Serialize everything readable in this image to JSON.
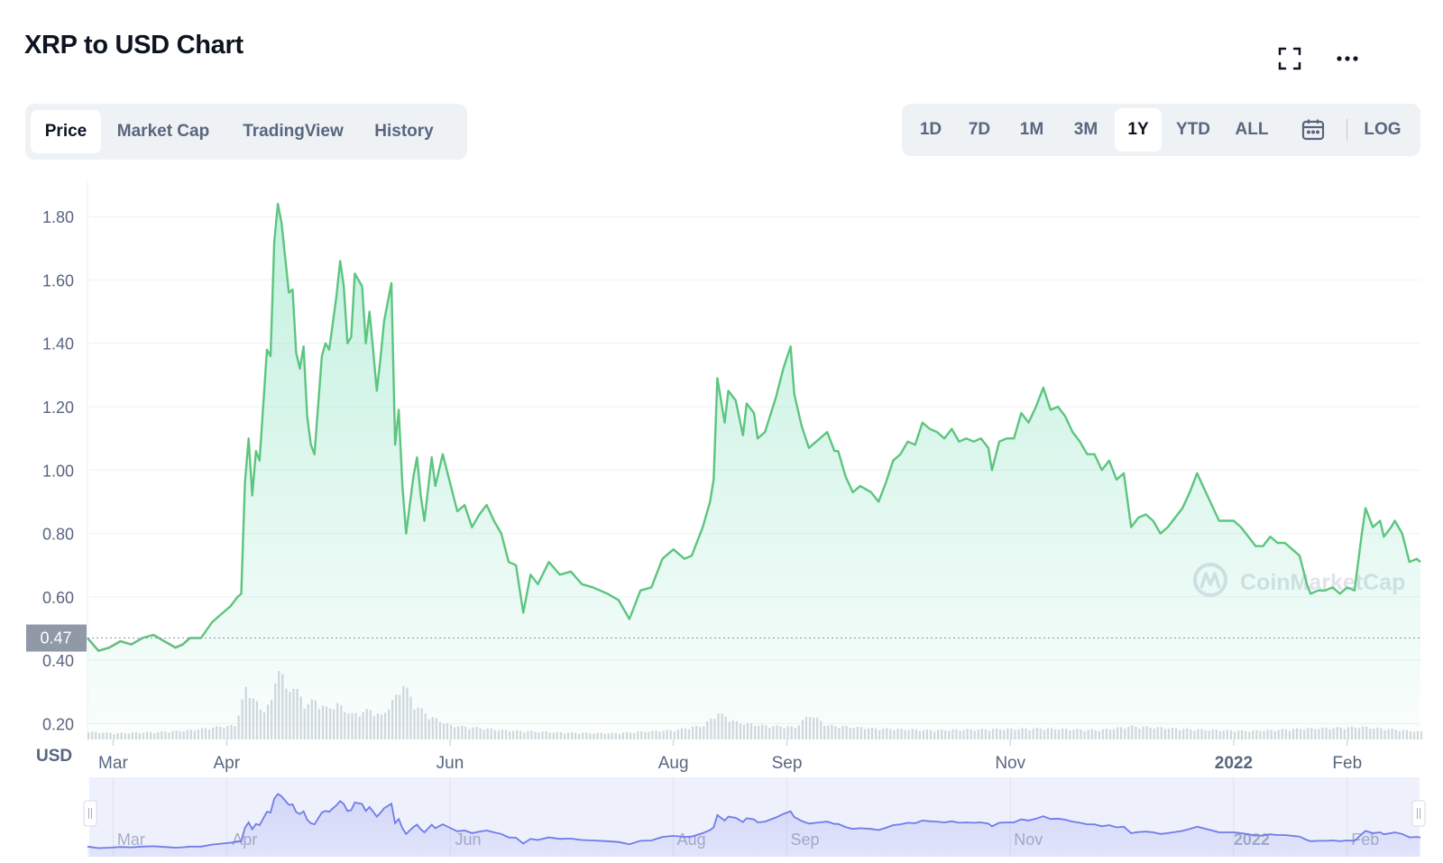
{
  "header": {
    "title": "XRP to USD Chart",
    "fullscreen_icon": "fullscreen-icon",
    "more_icon": "more-dots-icon"
  },
  "tabs": [
    {
      "label": "Price",
      "active": true
    },
    {
      "label": "Market Cap",
      "active": false
    },
    {
      "label": "TradingView",
      "active": false
    },
    {
      "label": "History",
      "active": false
    }
  ],
  "ranges": [
    {
      "label": "1D",
      "active": false
    },
    {
      "label": "7D",
      "active": false
    },
    {
      "label": "1M",
      "active": false
    },
    {
      "label": "3M",
      "active": false
    },
    {
      "label": "1Y",
      "active": true
    },
    {
      "label": "YTD",
      "active": false
    },
    {
      "label": "ALL",
      "active": false
    }
  ],
  "calendar_icon": "calendar-icon",
  "log_label": "LOG",
  "watermark": "CoinMarketCap",
  "colors": {
    "up": "#16c784",
    "line_up": "#5cc57f",
    "line_down": "#ea3943",
    "navigator": "#6f7ce8"
  },
  "chart_data": {
    "type": "area",
    "title": "XRP to USD Chart",
    "y_unit_label": "USD",
    "y_ticks": [
      0.2,
      0.4,
      0.6,
      0.8,
      1.0,
      1.2,
      1.4,
      1.6,
      1.8
    ],
    "y_tick_labels": [
      "0.20",
      "0.40",
      "0.60",
      "0.80",
      "1.00",
      "1.20",
      "1.40",
      "1.60",
      "1.80"
    ],
    "ylim": [
      0.15,
      1.92
    ],
    "x_tick_labels": [
      "Mar",
      "Apr",
      "Jun",
      "Aug",
      "Sep",
      "Nov",
      "2022",
      "Feb"
    ],
    "x_tick_dates": [
      "2021-03-01",
      "2021-04-01",
      "2021-06-01",
      "2021-08-01",
      "2021-09-01",
      "2021-11-01",
      "2022-01-01",
      "2022-02-01"
    ],
    "x_tick_bold": [
      false,
      false,
      false,
      false,
      false,
      false,
      true,
      false
    ],
    "xlim": [
      "2021-02-22",
      "2022-02-21"
    ],
    "reference_price": 0.47,
    "reference_label": "0.47",
    "series": [
      {
        "values": [
          [
            "2021-02-22",
            0.47
          ],
          [
            "2021-02-25",
            0.43
          ],
          [
            "2021-02-28",
            0.44
          ],
          [
            "2021-03-03",
            0.46
          ],
          [
            "2021-03-06",
            0.45
          ],
          [
            "2021-03-09",
            0.47
          ],
          [
            "2021-03-12",
            0.48
          ],
          [
            "2021-03-15",
            0.46
          ],
          [
            "2021-03-18",
            0.44
          ],
          [
            "2021-03-20",
            0.45
          ],
          [
            "2021-03-22",
            0.47
          ],
          [
            "2021-03-25",
            0.47
          ],
          [
            "2021-03-28",
            0.52
          ],
          [
            "2021-03-31",
            0.55
          ],
          [
            "2021-04-02",
            0.57
          ],
          [
            "2021-04-04",
            0.6
          ],
          [
            "2021-04-05",
            0.61
          ],
          [
            "2021-04-06",
            0.96
          ],
          [
            "2021-04-07",
            1.1
          ],
          [
            "2021-04-08",
            0.92
          ],
          [
            "2021-04-09",
            1.06
          ],
          [
            "2021-04-10",
            1.03
          ],
          [
            "2021-04-12",
            1.38
          ],
          [
            "2021-04-13",
            1.36
          ],
          [
            "2021-04-14",
            1.72
          ],
          [
            "2021-04-15",
            1.84
          ],
          [
            "2021-04-16",
            1.78
          ],
          [
            "2021-04-18",
            1.56
          ],
          [
            "2021-04-19",
            1.57
          ],
          [
            "2021-04-20",
            1.37
          ],
          [
            "2021-04-21",
            1.32
          ],
          [
            "2021-04-22",
            1.39
          ],
          [
            "2021-04-23",
            1.17
          ],
          [
            "2021-04-24",
            1.08
          ],
          [
            "2021-04-25",
            1.05
          ],
          [
            "2021-04-27",
            1.36
          ],
          [
            "2021-04-28",
            1.4
          ],
          [
            "2021-04-29",
            1.38
          ],
          [
            "2021-05-01",
            1.55
          ],
          [
            "2021-05-02",
            1.66
          ],
          [
            "2021-05-03",
            1.58
          ],
          [
            "2021-05-04",
            1.4
          ],
          [
            "2021-05-05",
            1.42
          ],
          [
            "2021-05-06",
            1.62
          ],
          [
            "2021-05-08",
            1.58
          ],
          [
            "2021-05-09",
            1.4
          ],
          [
            "2021-05-10",
            1.5
          ],
          [
            "2021-05-11",
            1.38
          ],
          [
            "2021-05-12",
            1.25
          ],
          [
            "2021-05-13",
            1.35
          ],
          [
            "2021-05-14",
            1.47
          ],
          [
            "2021-05-16",
            1.59
          ],
          [
            "2021-05-17",
            1.08
          ],
          [
            "2021-05-18",
            1.19
          ],
          [
            "2021-05-19",
            0.95
          ],
          [
            "2021-05-20",
            0.8
          ],
          [
            "2021-05-22",
            0.98
          ],
          [
            "2021-05-23",
            1.04
          ],
          [
            "2021-05-24",
            0.92
          ],
          [
            "2021-05-25",
            0.84
          ],
          [
            "2021-05-27",
            1.04
          ],
          [
            "2021-05-28",
            0.95
          ],
          [
            "2021-05-30",
            1.05
          ],
          [
            "2021-06-01",
            0.96
          ],
          [
            "2021-06-03",
            0.87
          ],
          [
            "2021-06-05",
            0.89
          ],
          [
            "2021-06-07",
            0.82
          ],
          [
            "2021-06-09",
            0.86
          ],
          [
            "2021-06-11",
            0.89
          ],
          [
            "2021-06-13",
            0.84
          ],
          [
            "2021-06-15",
            0.8
          ],
          [
            "2021-06-17",
            0.71
          ],
          [
            "2021-06-19",
            0.7
          ],
          [
            "2021-06-21",
            0.55
          ],
          [
            "2021-06-23",
            0.67
          ],
          [
            "2021-06-25",
            0.64
          ],
          [
            "2021-06-28",
            0.71
          ],
          [
            "2021-07-01",
            0.67
          ],
          [
            "2021-07-04",
            0.68
          ],
          [
            "2021-07-07",
            0.64
          ],
          [
            "2021-07-10",
            0.63
          ],
          [
            "2021-07-14",
            0.61
          ],
          [
            "2021-07-17",
            0.59
          ],
          [
            "2021-07-20",
            0.53
          ],
          [
            "2021-07-23",
            0.62
          ],
          [
            "2021-07-26",
            0.63
          ],
          [
            "2021-07-29",
            0.72
          ],
          [
            "2021-08-01",
            0.75
          ],
          [
            "2021-08-04",
            0.72
          ],
          [
            "2021-08-06",
            0.73
          ],
          [
            "2021-08-09",
            0.82
          ],
          [
            "2021-08-11",
            0.9
          ],
          [
            "2021-08-12",
            0.97
          ],
          [
            "2021-08-13",
            1.29
          ],
          [
            "2021-08-15",
            1.15
          ],
          [
            "2021-08-16",
            1.25
          ],
          [
            "2021-08-18",
            1.22
          ],
          [
            "2021-08-20",
            1.11
          ],
          [
            "2021-08-21",
            1.21
          ],
          [
            "2021-08-23",
            1.18
          ],
          [
            "2021-08-24",
            1.1
          ],
          [
            "2021-08-26",
            1.12
          ],
          [
            "2021-08-29",
            1.23
          ],
          [
            "2021-08-31",
            1.32
          ],
          [
            "2021-09-02",
            1.39
          ],
          [
            "2021-09-03",
            1.24
          ],
          [
            "2021-09-04",
            1.19
          ],
          [
            "2021-09-05",
            1.14
          ],
          [
            "2021-09-07",
            1.07
          ],
          [
            "2021-09-09",
            1.09
          ],
          [
            "2021-09-12",
            1.12
          ],
          [
            "2021-09-14",
            1.06
          ],
          [
            "2021-09-15",
            1.06
          ],
          [
            "2021-09-17",
            0.98
          ],
          [
            "2021-09-19",
            0.93
          ],
          [
            "2021-09-21",
            0.95
          ],
          [
            "2021-09-24",
            0.93
          ],
          [
            "2021-09-26",
            0.9
          ],
          [
            "2021-09-28",
            0.96
          ],
          [
            "2021-09-30",
            1.03
          ],
          [
            "2021-10-02",
            1.05
          ],
          [
            "2021-10-04",
            1.09
          ],
          [
            "2021-10-06",
            1.08
          ],
          [
            "2021-10-08",
            1.15
          ],
          [
            "2021-10-10",
            1.13
          ],
          [
            "2021-10-12",
            1.12
          ],
          [
            "2021-10-14",
            1.1
          ],
          [
            "2021-10-16",
            1.13
          ],
          [
            "2021-10-18",
            1.09
          ],
          [
            "2021-10-20",
            1.1
          ],
          [
            "2021-10-22",
            1.09
          ],
          [
            "2021-10-24",
            1.1
          ],
          [
            "2021-10-26",
            1.07
          ],
          [
            "2021-10-27",
            1.0
          ],
          [
            "2021-10-29",
            1.09
          ],
          [
            "2021-10-31",
            1.1
          ],
          [
            "2021-11-02",
            1.1
          ],
          [
            "2021-11-04",
            1.18
          ],
          [
            "2021-11-06",
            1.15
          ],
          [
            "2021-11-08",
            1.2
          ],
          [
            "2021-11-10",
            1.26
          ],
          [
            "2021-11-12",
            1.19
          ],
          [
            "2021-11-14",
            1.2
          ],
          [
            "2021-11-16",
            1.17
          ],
          [
            "2021-11-18",
            1.12
          ],
          [
            "2021-11-20",
            1.09
          ],
          [
            "2021-11-22",
            1.05
          ],
          [
            "2021-11-24",
            1.05
          ],
          [
            "2021-11-26",
            1.0
          ],
          [
            "2021-11-28",
            1.03
          ],
          [
            "2021-11-30",
            0.97
          ],
          [
            "2021-12-02",
            0.99
          ],
          [
            "2021-12-04",
            0.82
          ],
          [
            "2021-12-06",
            0.85
          ],
          [
            "2021-12-08",
            0.86
          ],
          [
            "2021-12-10",
            0.84
          ],
          [
            "2021-12-12",
            0.8
          ],
          [
            "2021-12-14",
            0.82
          ],
          [
            "2021-12-16",
            0.85
          ],
          [
            "2021-12-18",
            0.88
          ],
          [
            "2021-12-20",
            0.93
          ],
          [
            "2021-12-22",
            0.99
          ],
          [
            "2021-12-24",
            0.94
          ],
          [
            "2021-12-26",
            0.89
          ],
          [
            "2021-12-28",
            0.84
          ],
          [
            "2021-12-30",
            0.84
          ],
          [
            "2022-01-01",
            0.84
          ],
          [
            "2022-01-03",
            0.82
          ],
          [
            "2022-01-05",
            0.79
          ],
          [
            "2022-01-07",
            0.76
          ],
          [
            "2022-01-09",
            0.76
          ],
          [
            "2022-01-11",
            0.79
          ],
          [
            "2022-01-13",
            0.77
          ],
          [
            "2022-01-15",
            0.77
          ],
          [
            "2022-01-17",
            0.75
          ],
          [
            "2022-01-19",
            0.73
          ],
          [
            "2022-01-21",
            0.64
          ],
          [
            "2022-01-22",
            0.61
          ],
          [
            "2022-01-24",
            0.62
          ],
          [
            "2022-01-26",
            0.62
          ],
          [
            "2022-01-28",
            0.63
          ],
          [
            "2022-01-30",
            0.61
          ],
          [
            "2022-02-01",
            0.63
          ],
          [
            "2022-02-03",
            0.62
          ],
          [
            "2022-02-05",
            0.8
          ],
          [
            "2022-02-06",
            0.88
          ],
          [
            "2022-02-08",
            0.82
          ],
          [
            "2022-02-10",
            0.84
          ],
          [
            "2022-02-11",
            0.79
          ],
          [
            "2022-02-13",
            0.82
          ],
          [
            "2022-02-14",
            0.84
          ],
          [
            "2022-02-16",
            0.8
          ],
          [
            "2022-02-18",
            0.71
          ],
          [
            "2022-02-20",
            0.72
          ],
          [
            "2022-02-21",
            0.71
          ]
        ]
      }
    ],
    "volume": [
      [
        "2021-02-22",
        0.1
      ],
      [
        "2021-03-01",
        0.08
      ],
      [
        "2021-03-08",
        0.09
      ],
      [
        "2021-03-15",
        0.1
      ],
      [
        "2021-03-22",
        0.12
      ],
      [
        "2021-03-29",
        0.16
      ],
      [
        "2021-04-03",
        0.18
      ],
      [
        "2021-04-06",
        0.65
      ],
      [
        "2021-04-08",
        0.55
      ],
      [
        "2021-04-10",
        0.38
      ],
      [
        "2021-04-13",
        0.48
      ],
      [
        "2021-04-15",
        1.0
      ],
      [
        "2021-04-17",
        0.62
      ],
      [
        "2021-04-19",
        0.7
      ],
      [
        "2021-04-22",
        0.45
      ],
      [
        "2021-04-25",
        0.5
      ],
      [
        "2021-04-28",
        0.4
      ],
      [
        "2021-05-01",
        0.45
      ],
      [
        "2021-05-05",
        0.32
      ],
      [
        "2021-05-10",
        0.38
      ],
      [
        "2021-05-13",
        0.3
      ],
      [
        "2021-05-17",
        0.55
      ],
      [
        "2021-05-19",
        0.72
      ],
      [
        "2021-05-22",
        0.45
      ],
      [
        "2021-05-26",
        0.3
      ],
      [
        "2021-06-01",
        0.18
      ],
      [
        "2021-06-15",
        0.12
      ],
      [
        "2021-07-01",
        0.09
      ],
      [
        "2021-07-15",
        0.08
      ],
      [
        "2021-08-01",
        0.12
      ],
      [
        "2021-08-09",
        0.18
      ],
      [
        "2021-08-13",
        0.34
      ],
      [
        "2021-08-18",
        0.22
      ],
      [
        "2021-08-25",
        0.18
      ],
      [
        "2021-09-03",
        0.16
      ],
      [
        "2021-09-07",
        0.32
      ],
      [
        "2021-09-12",
        0.18
      ],
      [
        "2021-09-25",
        0.14
      ],
      [
        "2021-10-10",
        0.12
      ],
      [
        "2021-10-25",
        0.13
      ],
      [
        "2021-11-10",
        0.14
      ],
      [
        "2021-11-25",
        0.12
      ],
      [
        "2021-12-04",
        0.17
      ],
      [
        "2021-12-20",
        0.13
      ],
      [
        "2022-01-05",
        0.11
      ],
      [
        "2022-01-21",
        0.14
      ],
      [
        "2022-02-05",
        0.16
      ],
      [
        "2022-02-21",
        0.1
      ]
    ],
    "navigator_x_tick_labels": [
      "Mar",
      "Apr",
      "Jun",
      "Aug",
      "Sep",
      "Nov",
      "2022",
      "Feb"
    ]
  }
}
